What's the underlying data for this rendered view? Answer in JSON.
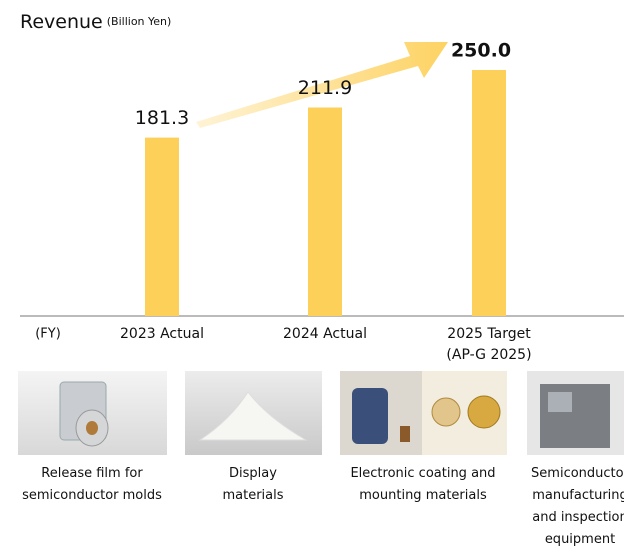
{
  "chart_data": {
    "type": "bar",
    "title": "Revenue",
    "unit": "(Billion Yen)",
    "x_label": "(FY)",
    "categories": [
      "2023 Actual",
      "2024 Actual",
      "2025 Target\n(AP-G 2025)"
    ],
    "values": [
      181.3,
      211.9,
      250.0
    ],
    "value_labels": [
      "181.3",
      "211.9",
      "250.0"
    ],
    "color": "#fdd05a",
    "ylim": [
      0,
      250
    ]
  },
  "products": [
    {
      "label": "Release film for\nsemiconductor molds"
    },
    {
      "label": "Display\nmaterials"
    },
    {
      "label": "Electronic coating and\nmounting materials"
    },
    {
      "label": "Semiconductor\nmanufacturing\nand inspection\nequipment"
    }
  ]
}
